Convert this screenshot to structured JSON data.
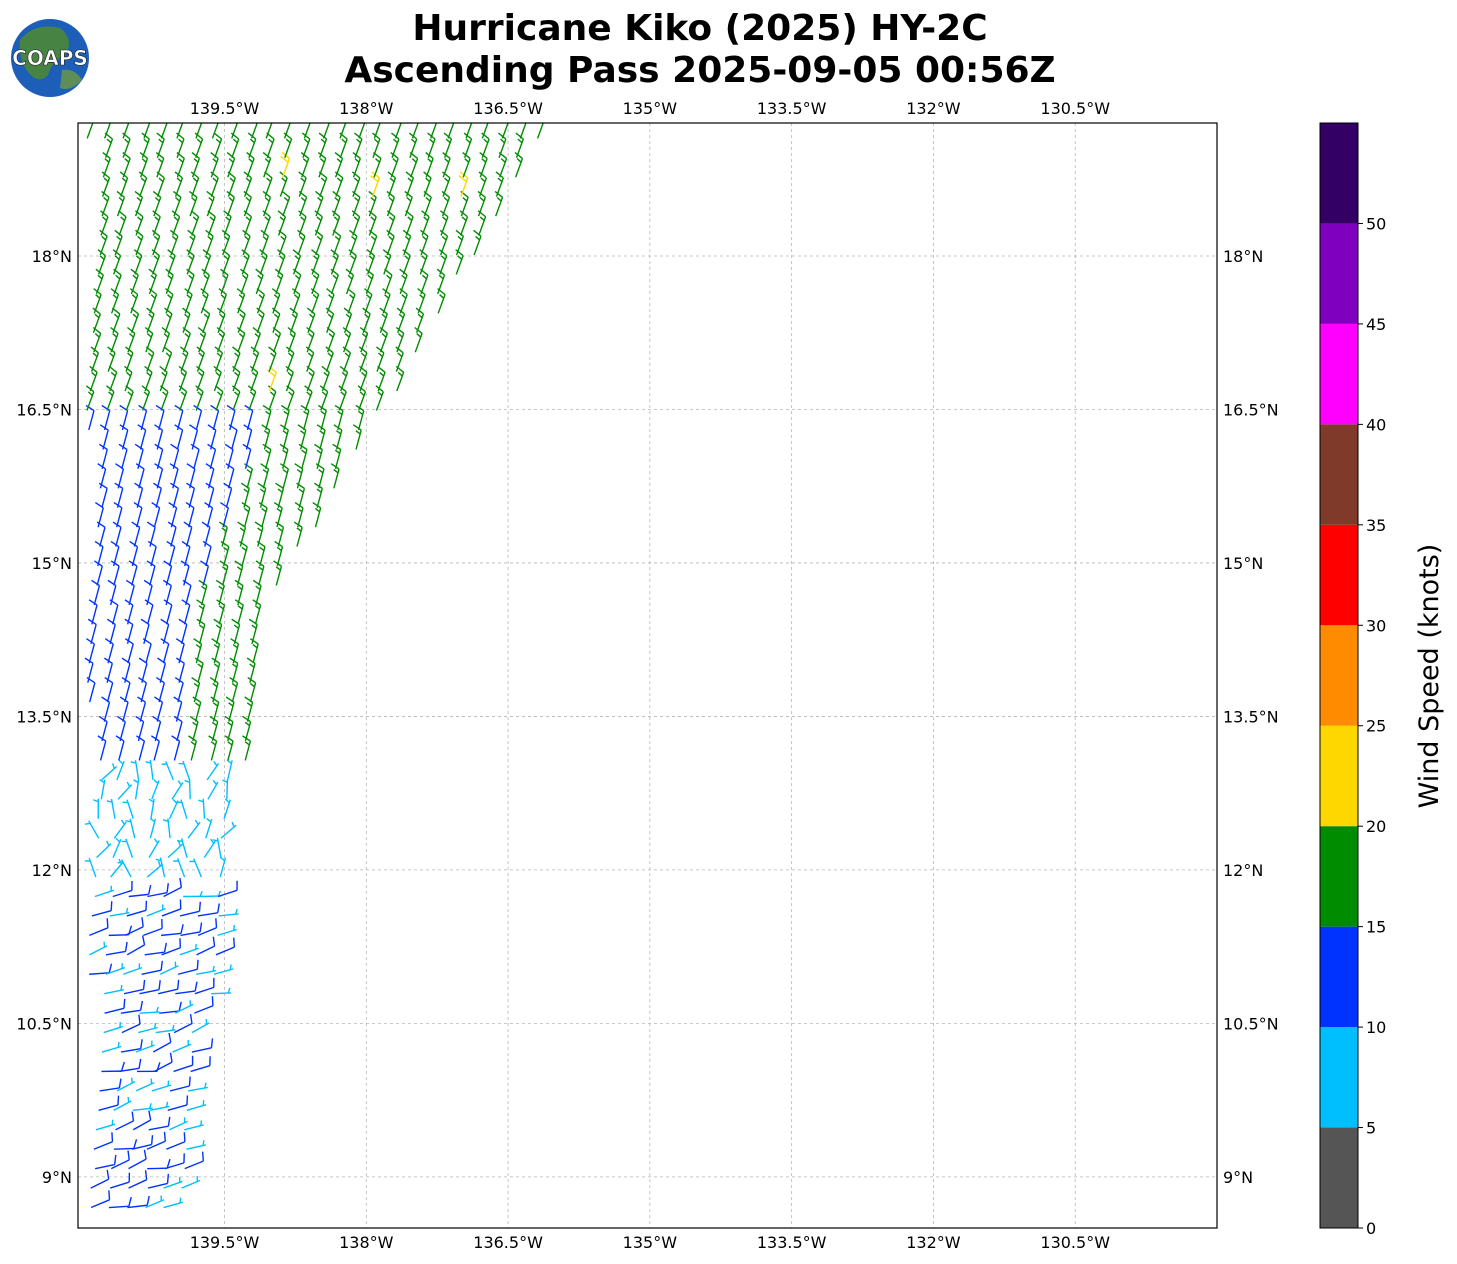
{
  "title": {
    "line1": "Hurricane Kiko (2025) HY-2C",
    "line2": "Ascending Pass 2025-09-05 00:56Z"
  },
  "logo": {
    "text": "COAPS",
    "icon": "globe-logo"
  },
  "map": {
    "lon_range": [
      -141.05,
      -129.0
    ],
    "lat_range": [
      8.5,
      19.3
    ],
    "x_ticks": [
      {
        "lon": -139.5,
        "label": "139.5°W"
      },
      {
        "lon": -138.0,
        "label": "138°W"
      },
      {
        "lon": -136.5,
        "label": "136.5°W"
      },
      {
        "lon": -135.0,
        "label": "135°W"
      },
      {
        "lon": -133.5,
        "label": "133.5°W"
      },
      {
        "lon": -132.0,
        "label": "132°W"
      },
      {
        "lon": -130.5,
        "label": "130.5°W"
      }
    ],
    "y_ticks": [
      {
        "lat": 18.0,
        "label": "18°N"
      },
      {
        "lat": 16.5,
        "label": "16.5°N"
      },
      {
        "lat": 15.0,
        "label": "15°N"
      },
      {
        "lat": 13.5,
        "label": "13.5°N"
      },
      {
        "lat": 12.0,
        "label": "12°N"
      },
      {
        "lat": 10.5,
        "label": "10.5°N"
      },
      {
        "lat": 9.0,
        "label": "9°N"
      }
    ],
    "grid": true,
    "swath": {
      "description_visible": false,
      "left_edge_lon": -140.0,
      "corner_points": [
        [
          -140.0,
          8.6
        ],
        [
          -139.0,
          14.6
        ],
        [
          -136.0,
          19.3
        ],
        [
          -140.0,
          19.3
        ]
      ]
    }
  },
  "colorbar": {
    "label": "Wind Speed (knots)",
    "bins": [
      {
        "min": 0,
        "max": 5,
        "color": "#555555"
      },
      {
        "min": 5,
        "max": 10,
        "color": "#00bfff"
      },
      {
        "min": 10,
        "max": 15,
        "color": "#0033ff"
      },
      {
        "min": 15,
        "max": 20,
        "color": "#008c00"
      },
      {
        "min": 20,
        "max": 25,
        "color": "#ffd700"
      },
      {
        "min": 25,
        "max": 30,
        "color": "#ff8c00"
      },
      {
        "min": 30,
        "max": 35,
        "color": "#ff0000"
      },
      {
        "min": 35,
        "max": 40,
        "color": "#803a2a"
      },
      {
        "min": 40,
        "max": 45,
        "color": "#ff00ff"
      },
      {
        "min": 45,
        "max": 50,
        "color": "#8000c0"
      },
      {
        "min": 50,
        "max": 55,
        "color": "#330066"
      }
    ],
    "tick_labels": [
      "0",
      "5",
      "10",
      "15",
      "20",
      "25",
      "30",
      "35",
      "40",
      "45",
      "50"
    ]
  },
  "wind_field_regions": [
    {
      "lat_min": 16.5,
      "lat_max": 19.3,
      "speed_kt": 17,
      "color_hint": "green"
    },
    {
      "lat_min": 13.0,
      "lat_max": 16.5,
      "speed_kt": 12,
      "color_hint": "blue_west_green_east"
    },
    {
      "lat_min": 11.9,
      "lat_max": 13.0,
      "speed_kt": 8,
      "color_hint": "cyan"
    },
    {
      "lat_min": 8.6,
      "lat_max": 11.9,
      "speed_kt": 11,
      "color_hint": "blue_cyan_mix"
    }
  ]
}
